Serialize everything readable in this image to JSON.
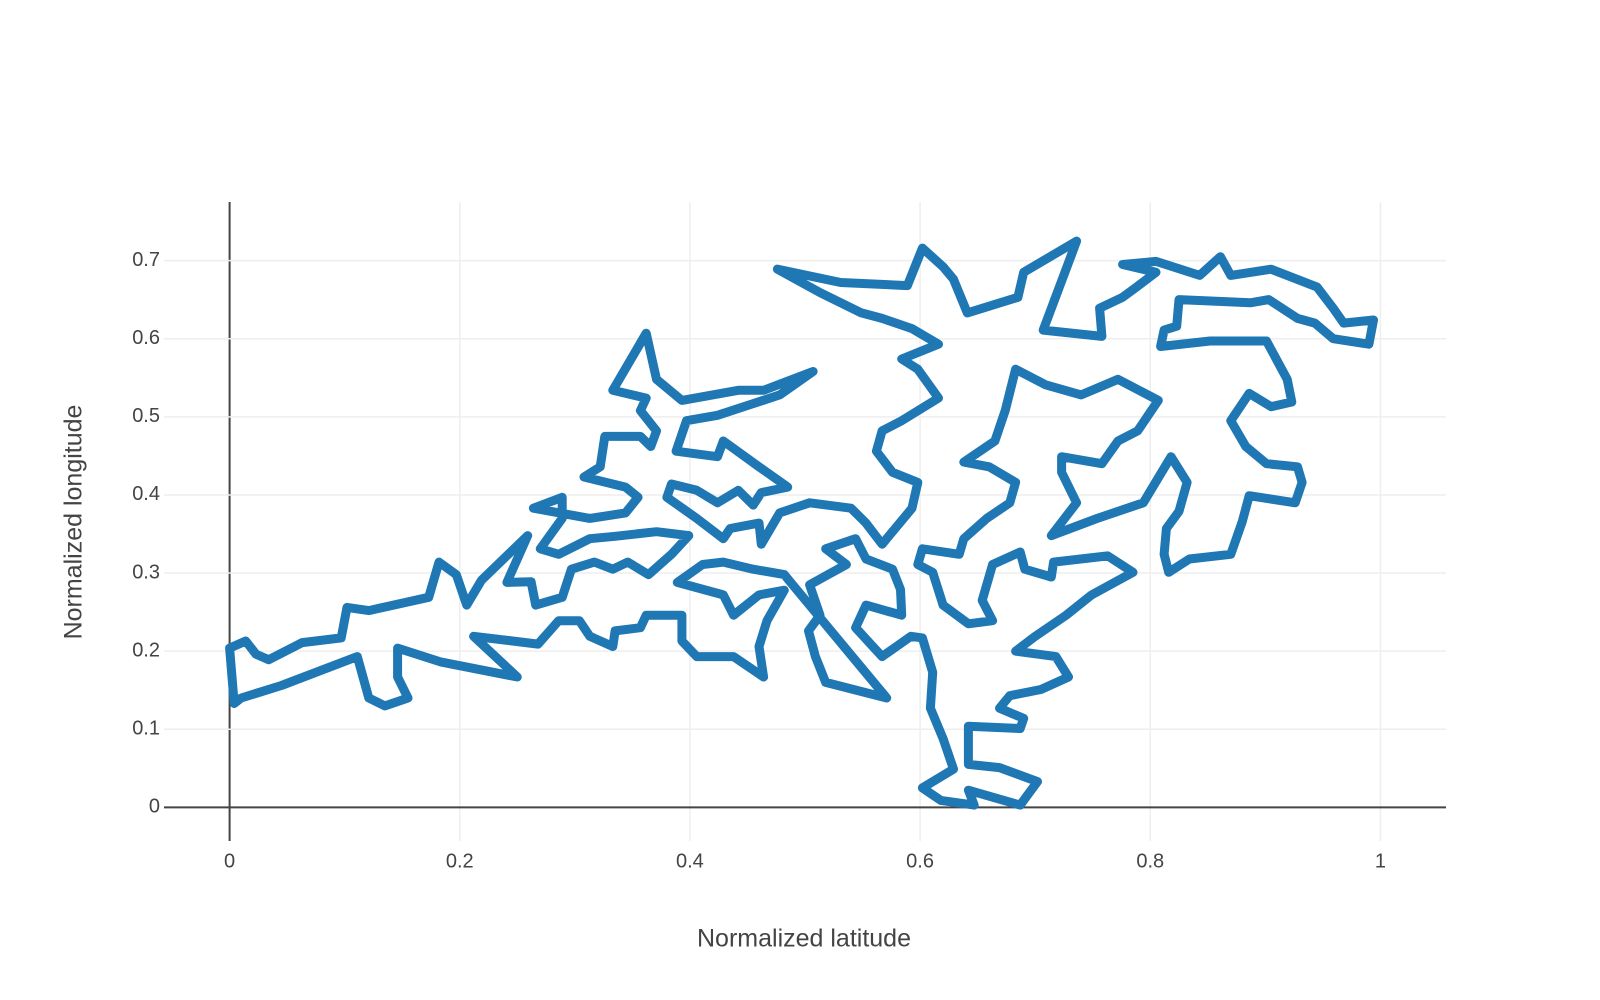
{
  "chart_data": {
    "type": "line",
    "x_label": "Normalized latitude",
    "y_label": "Normalized longitude",
    "color": "#1f77b4",
    "grid": true,
    "zeroline": true,
    "xlim": [
      -0.057,
      1.057
    ],
    "ylim": [
      -0.043,
      0.775
    ],
    "xticks": [
      0,
      0.2,
      0.4,
      0.6,
      0.8,
      1
    ],
    "yticks": [
      0,
      0.1,
      0.2,
      0.3,
      0.4,
      0.5,
      0.6,
      0.7
    ],
    "x": [
      0.004,
      0,
      0.014,
      0.023,
      0.034,
      0.063,
      0.097,
      0.102,
      0.121,
      0.173,
      0.182,
      0.197,
      0.206,
      0.219,
      0.259,
      0.241,
      0.262,
      0.266,
      0.289,
      0.297,
      0.317,
      0.333,
      0.346,
      0.364,
      0.384,
      0.399,
      0.371,
      0.335,
      0.313,
      0.286,
      0.27,
      0.289,
      0.289,
      0.264,
      0.313,
      0.344,
      0.355,
      0.344,
      0.308,
      0.322,
      0.326,
      0.357,
      0.366,
      0.371,
      0.357,
      0.362,
      0.333,
      0.362,
      0.371,
      0.393,
      0.442,
      0.464,
      0.507,
      0.478,
      0.451,
      0.424,
      0.397,
      0.388,
      0.424,
      0.429,
      0.46,
      0.485,
      0.462,
      0.455,
      0.442,
      0.424,
      0.406,
      0.384,
      0.38,
      0.406,
      0.429,
      0.435,
      0.46,
      0.462,
      0.478,
      0.504,
      0.54,
      0.553,
      0.567,
      0.593,
      0.598,
      0.576,
      0.562,
      0.567,
      0.584,
      0.616,
      0.598,
      0.584,
      0.616,
      0.593,
      0.567,
      0.549,
      0.513,
      0.476,
      0.531,
      0.589,
      0.602,
      0.62,
      0.629,
      0.641,
      0.685,
      0.69,
      0.736,
      0.707,
      0.758,
      0.756,
      0.776,
      0.788,
      0.805,
      0.776,
      0.805,
      0.843,
      0.861,
      0.87,
      0.905,
      0.945,
      0.959,
      0.968,
      0.994,
      0.99,
      0.959,
      0.943,
      0.928,
      0.903,
      0.887,
      0.825,
      0.823,
      0.812,
      0.809,
      0.852,
      0.901,
      0.919,
      0.923,
      0.905,
      0.886,
      0.87,
      0.883,
      0.901,
      0.928,
      0.932,
      0.926,
      0.886,
      0.88,
      0.87,
      0.834,
      0.816,
      0.812,
      0.814,
      0.825,
      0.832,
      0.818,
      0.794,
      0.754,
      0.714,
      0.736,
      0.723,
      0.723,
      0.758,
      0.772,
      0.789,
      0.807,
      0.772,
      0.74,
      0.709,
      0.683,
      0.674,
      0.665,
      0.638,
      0.66,
      0.683,
      0.678,
      0.658,
      0.638,
      0.634,
      0.602,
      0.598,
      0.611,
      0.62,
      0.642,
      0.663,
      0.654,
      0.663,
      0.687,
      0.691,
      0.714,
      0.716,
      0.763,
      0.785,
      0.749,
      0.727,
      0.7,
      0.683,
      0.718,
      0.729,
      0.705,
      0.678,
      0.669,
      0.69,
      0.687,
      0.642,
      0.642,
      0.669,
      0.702,
      0.687,
      0.642,
      0.647,
      0.618,
      0.602,
      0.629,
      0.62,
      0.609,
      0.611,
      0.602,
      0.592,
      0.567,
      0.544,
      0.553,
      0.584,
      0.583,
      0.576,
      0.553,
      0.544,
      0.518,
      0.536,
      0.504,
      0.513,
      0.503,
      0.509,
      0.518,
      0.571,
      0.491,
      0.482,
      0.455,
      0.429,
      0.411,
      0.389,
      0.429,
      0.438,
      0.46,
      0.482,
      0.467,
      0.46,
      0.464,
      0.438,
      0.406,
      0.393,
      0.393,
      0.362,
      0.357,
      0.335,
      0.333,
      0.313,
      0.304,
      0.286,
      0.268,
      0.212,
      0.25,
      0.184,
      0.146,
      0.146,
      0.155,
      0.135,
      0.121,
      0.111,
      0.045,
      0.01,
      0.004
    ],
    "y": [
      0.133,
      0.204,
      0.213,
      0.196,
      0.189,
      0.211,
      0.217,
      0.256,
      0.252,
      0.269,
      0.314,
      0.298,
      0.259,
      0.291,
      0.348,
      0.288,
      0.289,
      0.259,
      0.269,
      0.305,
      0.314,
      0.305,
      0.314,
      0.298,
      0.324,
      0.348,
      0.353,
      0.347,
      0.344,
      0.324,
      0.331,
      0.37,
      0.397,
      0.383,
      0.37,
      0.377,
      0.397,
      0.41,
      0.423,
      0.436,
      0.475,
      0.475,
      0.462,
      0.482,
      0.508,
      0.524,
      0.534,
      0.607,
      0.548,
      0.521,
      0.534,
      0.534,
      0.558,
      0.528,
      0.515,
      0.502,
      0.495,
      0.456,
      0.449,
      0.469,
      0.436,
      0.41,
      0.403,
      0.387,
      0.406,
      0.39,
      0.406,
      0.414,
      0.397,
      0.37,
      0.344,
      0.357,
      0.364,
      0.337,
      0.377,
      0.39,
      0.383,
      0.364,
      0.337,
      0.383,
      0.416,
      0.429,
      0.456,
      0.482,
      0.495,
      0.524,
      0.561,
      0.574,
      0.593,
      0.613,
      0.626,
      0.633,
      0.659,
      0.689,
      0.672,
      0.668,
      0.716,
      0.692,
      0.676,
      0.633,
      0.653,
      0.685,
      0.725,
      0.611,
      0.603,
      0.639,
      0.653,
      0.666,
      0.685,
      0.695,
      0.699,
      0.681,
      0.705,
      0.681,
      0.689,
      0.666,
      0.639,
      0.62,
      0.624,
      0.593,
      0.6,
      0.62,
      0.626,
      0.65,
      0.646,
      0.65,
      0.616,
      0.611,
      0.59,
      0.597,
      0.597,
      0.548,
      0.519,
      0.513,
      0.53,
      0.495,
      0.462,
      0.44,
      0.436,
      0.416,
      0.39,
      0.399,
      0.366,
      0.324,
      0.318,
      0.301,
      0.324,
      0.357,
      0.379,
      0.416,
      0.449,
      0.39,
      0.37,
      0.348,
      0.39,
      0.429,
      0.449,
      0.44,
      0.469,
      0.482,
      0.521,
      0.548,
      0.528,
      0.541,
      0.561,
      0.508,
      0.469,
      0.442,
      0.436,
      0.416,
      0.39,
      0.37,
      0.344,
      0.324,
      0.331,
      0.311,
      0.301,
      0.259,
      0.235,
      0.239,
      0.265,
      0.311,
      0.327,
      0.305,
      0.295,
      0.314,
      0.322,
      0.301,
      0.272,
      0.246,
      0.219,
      0.2,
      0.193,
      0.167,
      0.151,
      0.143,
      0.127,
      0.114,
      0.101,
      0.104,
      0.055,
      0.051,
      0.033,
      0.003,
      0.022,
      0.003,
      0.009,
      0.025,
      0.049,
      0.088,
      0.127,
      0.173,
      0.217,
      0.219,
      0.193,
      0.23,
      0.259,
      0.246,
      0.279,
      0.305,
      0.318,
      0.344,
      0.331,
      0.311,
      0.285,
      0.246,
      0.226,
      0.193,
      0.16,
      0.14,
      0.282,
      0.298,
      0.305,
      0.314,
      0.311,
      0.288,
      0.272,
      0.246,
      0.272,
      0.278,
      0.239,
      0.206,
      0.167,
      0.193,
      0.193,
      0.213,
      0.246,
      0.246,
      0.23,
      0.226,
      0.206,
      0.219,
      0.239,
      0.239,
      0.209,
      0.219,
      0.167,
      0.186,
      0.204,
      0.167,
      0.14,
      0.13,
      0.14,
      0.193,
      0.156,
      0.14,
      0.133
    ]
  }
}
